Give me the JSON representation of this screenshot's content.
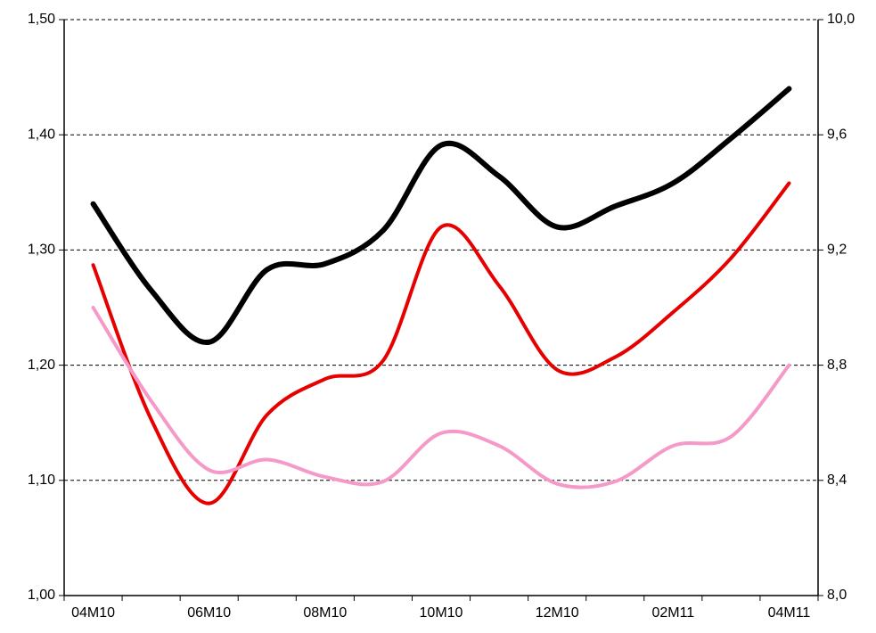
{
  "chart_data": {
    "type": "line",
    "categories": [
      "04M10",
      null,
      "06M10",
      null,
      "08M10",
      null,
      "10M10",
      null,
      "12M10",
      null,
      "02M11",
      null,
      "04M11"
    ],
    "series": [
      {
        "color": "#000000",
        "values": [
          1.34,
          1.265,
          1.22,
          1.283,
          1.288,
          1.317,
          1.391,
          1.364,
          1.32,
          1.338,
          1.358,
          1.397,
          1.44
        ]
      },
      {
        "color": "#e60000",
        "values": [
          1.287,
          1.153,
          1.08,
          1.157,
          1.188,
          1.204,
          1.32,
          1.269,
          1.196,
          1.207,
          1.246,
          1.293,
          1.358
        ]
      },
      {
        "color": "#f59ac8",
        "values": [
          1.25,
          1.169,
          1.109,
          1.118,
          1.103,
          1.099,
          1.141,
          1.13,
          1.097,
          1.099,
          1.13,
          1.138,
          1.2
        ]
      }
    ],
    "ylim": [
      1.0,
      1.5
    ],
    "yticks": [
      {
        "value": 1.0,
        "label": "1,00"
      },
      {
        "value": 1.1,
        "label": "1,10"
      },
      {
        "value": 1.2,
        "label": "1,20"
      },
      {
        "value": 1.3,
        "label": "1,30"
      },
      {
        "value": 1.4,
        "label": "1,40"
      },
      {
        "value": 1.5,
        "label": "1,50"
      }
    ],
    "y2lim": [
      8.0,
      10.0
    ],
    "y2ticks": [
      {
        "value": 8.0,
        "label": "8,0"
      },
      {
        "value": 8.4,
        "label": "8,4"
      },
      {
        "value": 8.8,
        "label": "8,8"
      },
      {
        "value": 9.2,
        "label": "9,2"
      },
      {
        "value": 9.6,
        "label": "9,6"
      },
      {
        "value": 10.0,
        "label": "10,0"
      }
    ],
    "grid": true
  }
}
